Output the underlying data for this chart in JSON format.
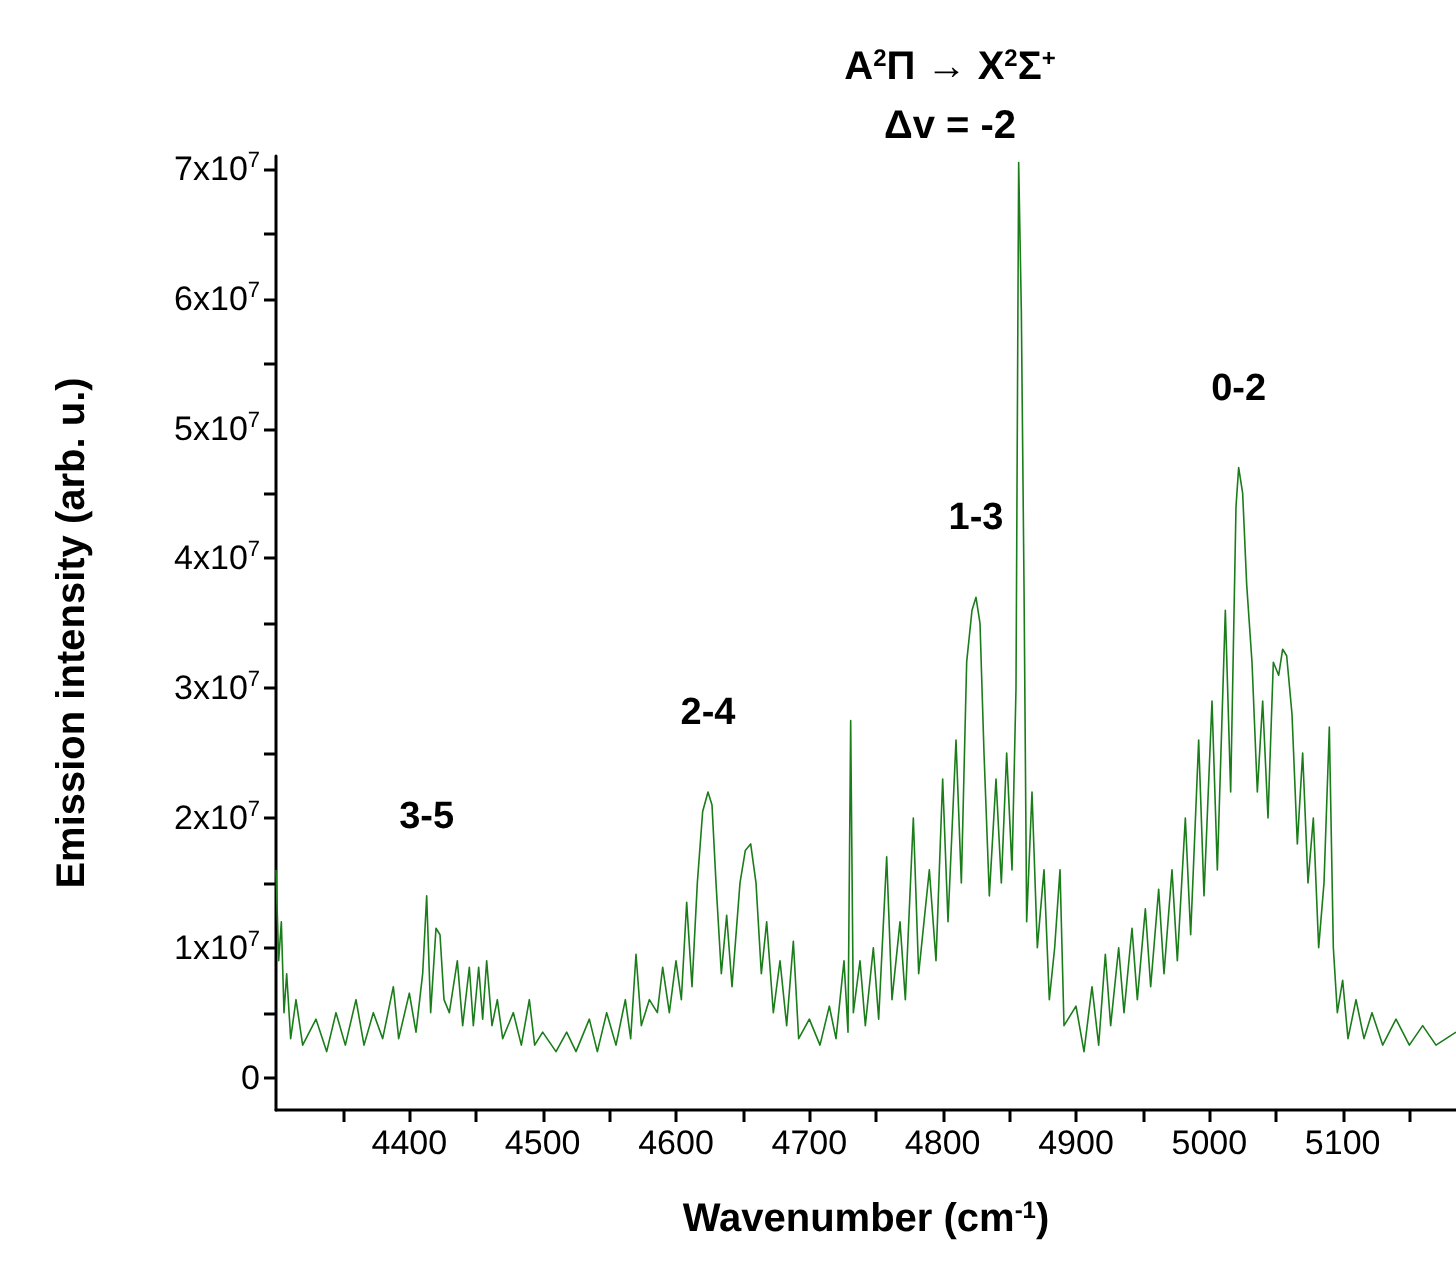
{
  "chart_data": {
    "type": "line",
    "title": "A$^{2}$Π → X$^{2}$Σ$^{+}$",
    "subtitle": "Δv = -2",
    "xlabel": "Wavenumber (cm$^{-1}$)",
    "ylabel": "Emission intensity (arb. u.)",
    "x": [
      4300,
      4302,
      4304,
      4306,
      4308,
      4311,
      4315,
      4320,
      4330,
      4338,
      4345,
      4352,
      4360,
      4366,
      4373,
      4380,
      4388,
      4392,
      4400,
      4405,
      4410,
      4413,
      4416,
      4420,
      4423,
      4426,
      4430,
      4436,
      4440,
      4445,
      4448,
      4452,
      4455,
      4458,
      4462,
      4466,
      4470,
      4478,
      4484,
      4490,
      4494,
      4500,
      4510,
      4518,
      4525,
      4535,
      4541,
      4548,
      4555,
      4562,
      4566,
      4570,
      4574,
      4580,
      4586,
      4590,
      4595,
      4600,
      4604,
      4608,
      4612,
      4616,
      4620,
      4624,
      4627,
      4630,
      4634,
      4638,
      4642,
      4648,
      4652,
      4656,
      4660,
      4664,
      4668,
      4673,
      4678,
      4683,
      4688,
      4692,
      4700,
      4708,
      4715,
      4720,
      4726,
      4729,
      4731,
      4733,
      4738,
      4742,
      4748,
      4752,
      4758,
      4762,
      4768,
      4772,
      4778,
      4782,
      4790,
      4795,
      4800,
      4804,
      4810,
      4814,
      4818,
      4822,
      4825,
      4828,
      4831,
      4835,
      4840,
      4844,
      4848,
      4852,
      4855,
      4857,
      4859,
      4861,
      4863,
      4867,
      4871,
      4876,
      4880,
      4884,
      4888,
      4891,
      4900,
      4906,
      4912,
      4917,
      4922,
      4926,
      4932,
      4936,
      4942,
      4946,
      4952,
      4956,
      4962,
      4966,
      4972,
      4976,
      4982,
      4986,
      4992,
      4996,
      5002,
      5006,
      5012,
      5016,
      5020,
      5022,
      5025,
      5028,
      5032,
      5036,
      5040,
      5044,
      5048,
      5052,
      5055,
      5058,
      5062,
      5066,
      5070,
      5074,
      5078,
      5082,
      5086,
      5090,
      5093,
      5096,
      5100,
      5104,
      5110,
      5116,
      5122,
      5130,
      5140,
      5150,
      5160,
      5170,
      5185
    ],
    "series": [
      {
        "color": "#1a7d1a",
        "values": [
          16000000.0,
          9000000.0,
          12000000.0,
          5000000.0,
          8000000.0,
          3000000.0,
          6000000.0,
          2500000.0,
          4500000.0,
          2000000.0,
          5000000.0,
          2500000.0,
          6000000.0,
          2500000.0,
          5000000.0,
          3000000.0,
          7000000.0,
          3000000.0,
          6500000.0,
          3500000.0,
          8000000.0,
          14000000.0,
          5000000.0,
          11500000.0,
          11000000.0,
          6000000.0,
          5000000.0,
          9000000.0,
          4000000.0,
          8500000.0,
          4000000.0,
          8500000.0,
          4500000.0,
          9000000.0,
          4000000.0,
          6000000.0,
          3000000.0,
          5000000.0,
          2500000.0,
          6000000.0,
          2500000.0,
          3500000.0,
          2000000.0,
          3500000.0,
          2000000.0,
          4500000.0,
          2000000.0,
          5000000.0,
          2500000.0,
          6000000.0,
          3000000.0,
          9500000.0,
          4000000.0,
          6000000.0,
          5000000.0,
          8500000.0,
          5000000.0,
          9000000.0,
          6000000.0,
          13500000.0,
          7000000.0,
          15000000.0,
          20500000.0,
          22000000.0,
          21000000.0,
          15000000.0,
          8000000.0,
          12500000.0,
          7000000.0,
          15000000.0,
          17500000.0,
          18000000.0,
          15000000.0,
          8000000.0,
          12000000.0,
          5000000.0,
          9000000.0,
          4000000.0,
          10500000.0,
          3000000.0,
          4500000.0,
          2500000.0,
          5500000.0,
          3000000.0,
          9000000.0,
          3500000.0,
          27500000.0,
          5000000.0,
          9000000.0,
          4000000.0,
          10000000.0,
          4500000.0,
          17000000.0,
          6000000.0,
          12000000.0,
          6000000.0,
          20000000.0,
          8000000.0,
          16000000.0,
          9000000.0,
          23000000.0,
          12000000.0,
          26000000.0,
          15000000.0,
          32000000.0,
          36000000.0,
          37000000.0,
          35000000.0,
          25000000.0,
          14000000.0,
          23000000.0,
          15000000.0,
          25000000.0,
          16000000.0,
          30000000.0,
          70500000.0,
          59000000.0,
          38000000.0,
          12000000.0,
          22000000.0,
          10000000.0,
          16000000.0,
          6000000.0,
          10000000.0,
          16000000.0,
          4000000.0,
          5500000.0,
          2000000.0,
          7000000.0,
          2500000.0,
          9500000.0,
          4000000.0,
          10000000.0,
          5000000.0,
          11500000.0,
          6000000.0,
          13000000.0,
          7000000.0,
          14500000.0,
          8000000.0,
          16000000.0,
          9000000.0,
          20000000.0,
          11000000.0,
          26000000.0,
          14000000.0,
          29000000.0,
          16000000.0,
          36000000.0,
          22000000.0,
          44000000.0,
          47000000.0,
          45000000.0,
          38000000.0,
          32000000.0,
          22000000.0,
          29000000.0,
          20000000.0,
          32000000.0,
          31000000.0,
          33000000.0,
          32500000.0,
          28000000.0,
          18000000.0,
          25000000.0,
          15000000.0,
          20000000.0,
          10000000.0,
          15000000.0,
          27000000.0,
          10000000.0,
          5000000.0,
          7500000.0,
          3000000.0,
          6000000.0,
          3000000.0,
          5000000.0,
          2500000.0,
          4500000.0,
          2500000.0,
          4000000.0,
          2500000.0,
          3500000.0
        ]
      }
    ],
    "xlim": [
      4300,
      5185
    ],
    "xticks": [
      {
        "value": 4350,
        "label": null
      },
      4400,
      {
        "value": 4450,
        "label": null
      },
      4500,
      {
        "value": 4550,
        "label": null
      },
      4600,
      {
        "value": 4650,
        "label": null
      },
      4700,
      {
        "value": 4750,
        "label": null
      },
      4800,
      {
        "value": 4850,
        "label": null
      },
      4900,
      {
        "value": 4950,
        "label": null
      },
      5000,
      {
        "value": 5050,
        "label": null
      },
      5100,
      {
        "value": 5150,
        "label": null
      }
    ],
    "ylim": [
      -2500000,
      71000000
    ],
    "yticks": [
      0,
      {
        "value": 5000000,
        "label": null
      },
      {
        "value": 10000000,
        "label": "1x10$^{7}$"
      },
      {
        "value": 15000000,
        "label": null
      },
      {
        "value": 20000000,
        "label": "2x10$^{7}$"
      },
      {
        "value": 25000000,
        "label": null
      },
      {
        "value": 30000000,
        "label": "3x10$^{7}$"
      },
      {
        "value": 35000000,
        "label": null
      },
      {
        "value": 40000000,
        "label": "4x10$^{7}$"
      },
      {
        "value": 45000000,
        "label": null
      },
      {
        "value": 50000000,
        "label": "5x10$^{7}$"
      },
      {
        "value": 55000000,
        "label": null
      },
      {
        "value": 60000000,
        "label": "6x10$^{7}$"
      },
      {
        "value": 65000000,
        "label": null
      },
      {
        "value": 70000000,
        "label": "7x10$^{7}$"
      }
    ],
    "annotations": [
      {
        "text": "3-5",
        "x": 4413,
        "y": 14000000
      },
      {
        "text": "2-4",
        "x": 4624,
        "y": 22000000
      },
      {
        "text": "1-3",
        "x": 4825,
        "y": 37000000
      },
      {
        "text": "0-2",
        "x": 5022,
        "y": 47000000
      }
    ],
    "grid": false,
    "marker": "none",
    "line_style": "solid"
  }
}
